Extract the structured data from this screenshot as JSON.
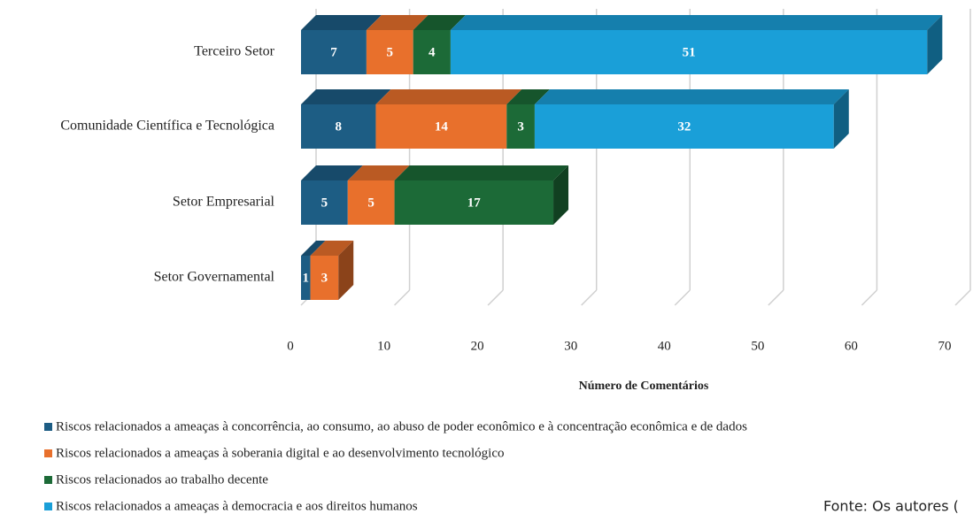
{
  "chart_data": {
    "type": "bar3d_stacked_horizontal",
    "categories": [
      "Terceiro Setor",
      "Comunidade Científica e Tecnológica",
      "Setor Empresarial",
      "Setor Governamental"
    ],
    "series": [
      {
        "name": "Riscos relacionados a ameaças à concorrência, ao consumo, ao abuso de poder econômico e à concentração econômica e de dados",
        "color": "#1d5d84",
        "values": [
          7,
          8,
          5,
          1
        ]
      },
      {
        "name": "Riscos relacionados a ameaças à soberania digital e ao desenvolvimento tecnológico",
        "color": "#e8702c",
        "values": [
          5,
          14,
          5,
          3
        ]
      },
      {
        "name": "Riscos relacionados ao trabalho decente",
        "color": "#1c6a37",
        "values": [
          4,
          3,
          17,
          null
        ]
      },
      {
        "name": "Riscos relacionados a ameaças à democracia e aos direitos humanos",
        "color": "#1a9fd8",
        "values": [
          51,
          32,
          null,
          null
        ]
      }
    ],
    "xlim": [
      0,
      70
    ],
    "xticks": [
      0,
      10,
      20,
      30,
      40,
      50,
      60,
      70
    ],
    "x_label": "Número de Comentários",
    "grid": true,
    "source": "Fonte: Os autores ("
  }
}
